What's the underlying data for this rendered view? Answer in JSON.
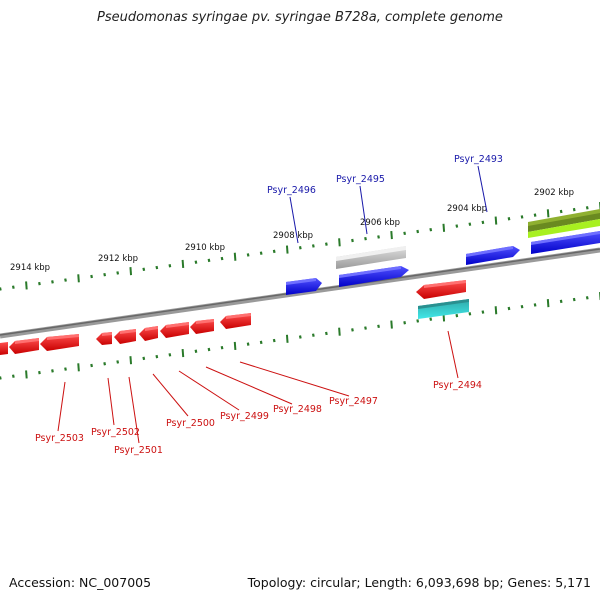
{
  "title": "Pseudomonas syringae pv. syringae B728a, complete genome",
  "footer": {
    "accession": "Accession: NC_007005",
    "summary": "Topology: circular; Length: 6,093,698 bp; Genes: 5,171"
  },
  "colors": {
    "forward": "#1010ee",
    "reverse": "#ee1010",
    "pseudo": "#b0b0b0",
    "rna": "#20c8c8",
    "green": "#6a8a20",
    "tick": "#2a7a2a",
    "label_forward": "#1a1aaa",
    "label_reverse": "#cc1111"
  },
  "ruler": [
    {
      "label": "2914 kbp"
    },
    {
      "label": "2912 kbp"
    },
    {
      "label": "2910 kbp"
    },
    {
      "label": "2908 kbp"
    },
    {
      "label": "2906 kbp"
    },
    {
      "label": "2904 kbp"
    },
    {
      "label": "2902 kbp"
    }
  ],
  "genes_forward": [
    {
      "label": "Psyr_2496"
    },
    {
      "label": "Psyr_2495"
    },
    {
      "label": "Psyr_2493"
    }
  ],
  "genes_reverse": [
    {
      "label": "Psyr_2503"
    },
    {
      "label": "Psyr_2502"
    },
    {
      "label": "Psyr_2501"
    },
    {
      "label": "Psyr_2500"
    },
    {
      "label": "Psyr_2499"
    },
    {
      "label": "Psyr_2498"
    },
    {
      "label": "Psyr_2497"
    },
    {
      "label": "Psyr_2494"
    }
  ]
}
